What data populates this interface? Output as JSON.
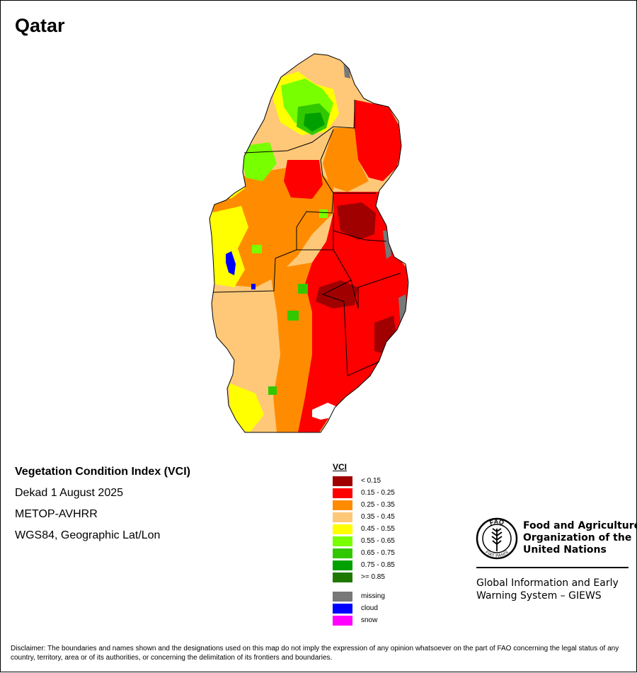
{
  "map": {
    "title": "Qatar",
    "colors": {
      "lt_0_15": "#a00000",
      "r_0_15_0_25": "#ff0000",
      "r_0_25_0_35": "#ff8c00",
      "r_0_35_0_45": "#ffc878",
      "r_0_45_0_55": "#ffff00",
      "r_0_55_0_65": "#78ff00",
      "r_0_65_0_75": "#32c800",
      "r_0_75_0_85": "#00a000",
      "ge_0_85": "#1e7800",
      "missing": "#787878",
      "cloud": "#0000ff",
      "snow": "#ff00ff"
    }
  },
  "info": {
    "title": "Vegetation Condition Index (VCI)",
    "period": "Dekad 1 August 2025",
    "sensor": "METOP-AVHRR",
    "projection": "WGS84, Geographic Lat/Lon"
  },
  "legend": {
    "title": "VCI",
    "classes": [
      {
        "label": "< 0.15",
        "color": "#a00000"
      },
      {
        "label": "0.15 - 0.25",
        "color": "#ff0000"
      },
      {
        "label": "0.25 - 0.35",
        "color": "#ff8c00"
      },
      {
        "label": "0.35 - 0.45",
        "color": "#ffc878"
      },
      {
        "label": "0.45 - 0.55",
        "color": "#ffff00"
      },
      {
        "label": "0.55 - 0.65",
        "color": "#78ff00"
      },
      {
        "label": "0.65 - 0.75",
        "color": "#32c800"
      },
      {
        "label": "0.75 - 0.85",
        "color": "#00a000"
      },
      {
        "label": ">= 0.85",
        "color": "#1e7800"
      }
    ],
    "special": [
      {
        "label": "missing",
        "color": "#787878"
      },
      {
        "label": "cloud",
        "color": "#0000ff"
      },
      {
        "label": "snow",
        "color": "#ff00ff"
      }
    ]
  },
  "org": {
    "name_lines": [
      "Food and Agriculture",
      "Organization of the",
      "United Nations"
    ],
    "logo_letters": {
      "top": "FAO",
      "bottom": "FIAT PANIS"
    },
    "giews_lines": [
      "Global Information and Early",
      "Warning System – GIEWS"
    ]
  },
  "disclaimer": "Disclaimer: The boundaries and names shown and the designations used on this map do not imply the expression of any opinion whatsoever on the part of FAO concerning the legal status of any country, territory, area or of its authorities, or concerning the delimitation of its frontiers and boundaries."
}
